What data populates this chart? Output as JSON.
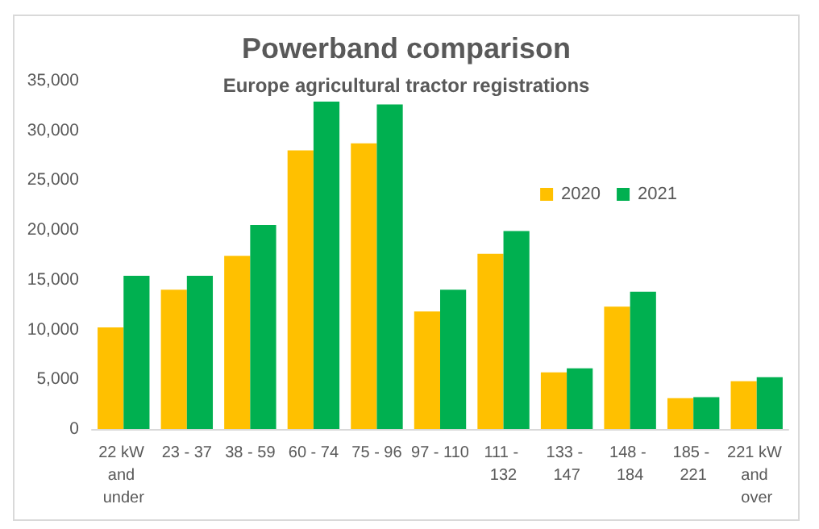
{
  "chart_data": {
    "type": "bar",
    "title": "Powerband comparison",
    "subtitle": "Europe agricultural tractor registrations",
    "categories": [
      "22 kW and under",
      "23 - 37",
      "38 - 59",
      "60 - 74",
      "75 - 96",
      "97 - 110",
      "111 - 132",
      "133 - 147",
      "148 - 184",
      "185 - 221",
      "221 kW and over"
    ],
    "series": [
      {
        "name": "2020",
        "color": "#ffc000",
        "values": [
          10200,
          14000,
          17400,
          28000,
          28700,
          11800,
          17600,
          5700,
          12300,
          3100,
          4800
        ]
      },
      {
        "name": "2021",
        "color": "#00b050",
        "values": [
          15400,
          15400,
          20500,
          32900,
          32600,
          14000,
          19900,
          6100,
          13800,
          3200,
          5200
        ]
      }
    ],
    "ylim": [
      0,
      35000
    ],
    "yticks": [
      0,
      {
        "value": 5000,
        "label": "5,000"
      },
      {
        "value": 10000,
        "label": "10,000"
      },
      {
        "value": 15000,
        "label": "15,000"
      },
      {
        "value": 20000,
        "label": "20,000"
      },
      {
        "value": 25000,
        "label": "25,000"
      },
      {
        "value": 30000,
        "label": "30,000"
      },
      {
        "value": 35000,
        "label": "35,000"
      }
    ],
    "grid": false,
    "legend": "right"
  }
}
